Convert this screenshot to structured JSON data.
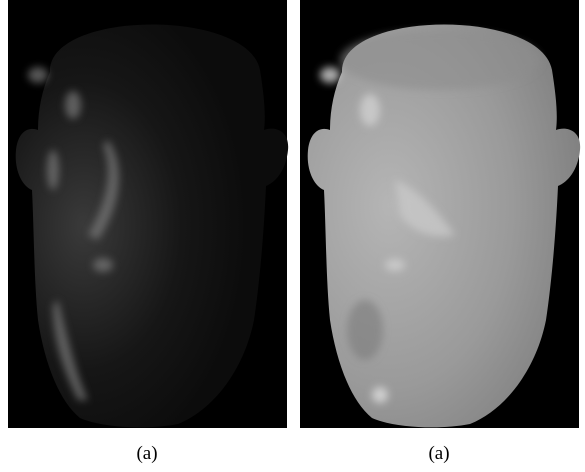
{
  "panels": [
    {
      "caption": "(a)"
    },
    {
      "caption": "(a)"
    }
  ]
}
